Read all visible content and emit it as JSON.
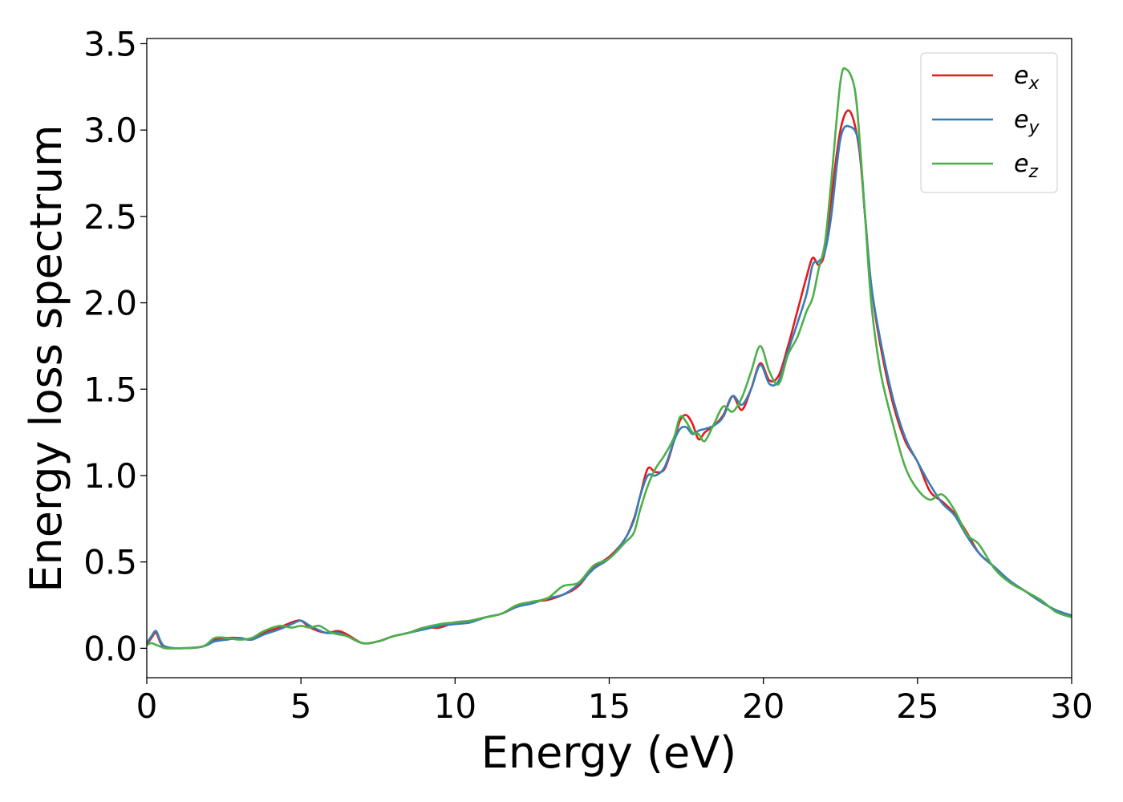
{
  "chart_data": {
    "type": "line",
    "title": "",
    "xlabel": "Energy (eV)",
    "ylabel": "Energy loss spectrum",
    "xlim": [
      0,
      30
    ],
    "ylim": [
      -0.17,
      3.53
    ],
    "xticks": [
      0,
      5,
      10,
      15,
      20,
      25,
      30
    ],
    "xtick_labels": [
      "0",
      "5",
      "10",
      "15",
      "20",
      "25",
      "30"
    ],
    "yticks": [
      0.0,
      0.5,
      1.0,
      1.5,
      2.0,
      2.5,
      3.0,
      3.5
    ],
    "ytick_labels": [
      "0.0",
      "0.5",
      "1.0",
      "1.5",
      "2.0",
      "2.5",
      "3.0",
      "3.5"
    ],
    "grid": false,
    "legend": "top-right",
    "series": [
      {
        "name": "e",
        "subscript": "x",
        "color": "#e41a1c",
        "points": [
          [
            0,
            0.02
          ],
          [
            0.15,
            0.06
          ],
          [
            0.3,
            0.09
          ],
          [
            0.45,
            0.03
          ],
          [
            0.6,
            0.01
          ],
          [
            1,
            0.0
          ],
          [
            1.8,
            0.01
          ],
          [
            2.2,
            0.05
          ],
          [
            2.6,
            0.06
          ],
          [
            3,
            0.06
          ],
          [
            3.4,
            0.05
          ],
          [
            3.8,
            0.09
          ],
          [
            4.3,
            0.12
          ],
          [
            4.7,
            0.15
          ],
          [
            5,
            0.16
          ],
          [
            5.3,
            0.12
          ],
          [
            5.8,
            0.09
          ],
          [
            6.2,
            0.1
          ],
          [
            6.5,
            0.08
          ],
          [
            7,
            0.03
          ],
          [
            7.5,
            0.04
          ],
          [
            8,
            0.07
          ],
          [
            8.5,
            0.09
          ],
          [
            9,
            0.12
          ],
          [
            9.5,
            0.12
          ],
          [
            10,
            0.15
          ],
          [
            10.5,
            0.16
          ],
          [
            11,
            0.18
          ],
          [
            11.5,
            0.2
          ],
          [
            12,
            0.24
          ],
          [
            12.5,
            0.27
          ],
          [
            13,
            0.28
          ],
          [
            13.5,
            0.31
          ],
          [
            14,
            0.36
          ],
          [
            14.5,
            0.47
          ],
          [
            15,
            0.53
          ],
          [
            15.5,
            0.63
          ],
          [
            15.8,
            0.75
          ],
          [
            16,
            0.88
          ],
          [
            16.25,
            1.04
          ],
          [
            16.5,
            1.02
          ],
          [
            16.8,
            1.04
          ],
          [
            17.1,
            1.2
          ],
          [
            17.3,
            1.32
          ],
          [
            17.5,
            1.35
          ],
          [
            17.7,
            1.3
          ],
          [
            17.9,
            1.21
          ],
          [
            18.1,
            1.25
          ],
          [
            18.4,
            1.29
          ],
          [
            18.7,
            1.35
          ],
          [
            19,
            1.46
          ],
          [
            19.3,
            1.38
          ],
          [
            19.6,
            1.5
          ],
          [
            19.9,
            1.65
          ],
          [
            20.2,
            1.55
          ],
          [
            20.5,
            1.58
          ],
          [
            20.8,
            1.75
          ],
          [
            21.1,
            1.95
          ],
          [
            21.4,
            2.15
          ],
          [
            21.6,
            2.26
          ],
          [
            21.8,
            2.22
          ],
          [
            22,
            2.3
          ],
          [
            22.2,
            2.6
          ],
          [
            22.5,
            3.0
          ],
          [
            22.8,
            3.11
          ],
          [
            23.1,
            2.9
          ],
          [
            23.3,
            2.5
          ],
          [
            23.5,
            2.1
          ],
          [
            23.8,
            1.75
          ],
          [
            24.2,
            1.42
          ],
          [
            24.6,
            1.2
          ],
          [
            25,
            1.08
          ],
          [
            25.4,
            0.91
          ],
          [
            25.8,
            0.85
          ],
          [
            26.2,
            0.78
          ],
          [
            26.6,
            0.67
          ],
          [
            27,
            0.55
          ],
          [
            27.5,
            0.47
          ],
          [
            28,
            0.39
          ],
          [
            28.5,
            0.33
          ],
          [
            29,
            0.27
          ],
          [
            29.5,
            0.22
          ],
          [
            30,
            0.19
          ]
        ]
      },
      {
        "name": "e",
        "subscript": "y",
        "color": "#377eb8",
        "points": [
          [
            0,
            0.03
          ],
          [
            0.15,
            0.07
          ],
          [
            0.3,
            0.1
          ],
          [
            0.45,
            0.04
          ],
          [
            0.6,
            0.01
          ],
          [
            1,
            0.0
          ],
          [
            1.8,
            0.01
          ],
          [
            2.2,
            0.04
          ],
          [
            2.6,
            0.05
          ],
          [
            3,
            0.06
          ],
          [
            3.4,
            0.05
          ],
          [
            3.8,
            0.08
          ],
          [
            4.3,
            0.11
          ],
          [
            4.7,
            0.14
          ],
          [
            5,
            0.16
          ],
          [
            5.3,
            0.13
          ],
          [
            5.8,
            0.09
          ],
          [
            6.2,
            0.09
          ],
          [
            6.5,
            0.07
          ],
          [
            7,
            0.03
          ],
          [
            7.5,
            0.04
          ],
          [
            8,
            0.07
          ],
          [
            8.5,
            0.09
          ],
          [
            9,
            0.11
          ],
          [
            9.5,
            0.13
          ],
          [
            10,
            0.14
          ],
          [
            10.5,
            0.15
          ],
          [
            11,
            0.18
          ],
          [
            11.5,
            0.2
          ],
          [
            12,
            0.24
          ],
          [
            12.5,
            0.26
          ],
          [
            13,
            0.29
          ],
          [
            13.5,
            0.31
          ],
          [
            14,
            0.37
          ],
          [
            14.5,
            0.46
          ],
          [
            15,
            0.52
          ],
          [
            15.5,
            0.63
          ],
          [
            15.8,
            0.74
          ],
          [
            16,
            0.88
          ],
          [
            16.25,
            1.0
          ],
          [
            16.5,
            1.0
          ],
          [
            16.8,
            1.05
          ],
          [
            17.1,
            1.2
          ],
          [
            17.3,
            1.27
          ],
          [
            17.5,
            1.28
          ],
          [
            17.7,
            1.24
          ],
          [
            17.9,
            1.26
          ],
          [
            18.1,
            1.27
          ],
          [
            18.4,
            1.29
          ],
          [
            18.7,
            1.34
          ],
          [
            19,
            1.46
          ],
          [
            19.3,
            1.41
          ],
          [
            19.6,
            1.5
          ],
          [
            19.9,
            1.64
          ],
          [
            20.2,
            1.53
          ],
          [
            20.5,
            1.55
          ],
          [
            20.8,
            1.72
          ],
          [
            21.1,
            1.88
          ],
          [
            21.4,
            2.05
          ],
          [
            21.6,
            2.22
          ],
          [
            21.8,
            2.24
          ],
          [
            22,
            2.3
          ],
          [
            22.2,
            2.5
          ],
          [
            22.5,
            2.95
          ],
          [
            22.8,
            3.02
          ],
          [
            23.1,
            2.92
          ],
          [
            23.3,
            2.5
          ],
          [
            23.5,
            2.1
          ],
          [
            23.8,
            1.78
          ],
          [
            24.2,
            1.45
          ],
          [
            24.6,
            1.22
          ],
          [
            25,
            1.08
          ],
          [
            25.4,
            0.95
          ],
          [
            25.8,
            0.84
          ],
          [
            26.2,
            0.77
          ],
          [
            26.6,
            0.65
          ],
          [
            27,
            0.55
          ],
          [
            27.5,
            0.47
          ],
          [
            28,
            0.39
          ],
          [
            28.5,
            0.33
          ],
          [
            29,
            0.27
          ],
          [
            29.5,
            0.22
          ],
          [
            30,
            0.19
          ]
        ]
      },
      {
        "name": "e",
        "subscript": "z",
        "color": "#4daf4a",
        "points": [
          [
            0,
            0.02
          ],
          [
            0.15,
            0.03
          ],
          [
            0.3,
            0.02
          ],
          [
            0.45,
            0.01
          ],
          [
            0.6,
            0.0
          ],
          [
            1,
            0.0
          ],
          [
            1.8,
            0.01
          ],
          [
            2.2,
            0.06
          ],
          [
            2.6,
            0.06
          ],
          [
            3,
            0.05
          ],
          [
            3.4,
            0.06
          ],
          [
            3.8,
            0.1
          ],
          [
            4.3,
            0.13
          ],
          [
            4.7,
            0.12
          ],
          [
            5,
            0.13
          ],
          [
            5.3,
            0.12
          ],
          [
            5.6,
            0.13
          ],
          [
            6,
            0.09
          ],
          [
            6.5,
            0.07
          ],
          [
            7,
            0.03
          ],
          [
            7.5,
            0.04
          ],
          [
            8,
            0.07
          ],
          [
            8.5,
            0.09
          ],
          [
            9,
            0.12
          ],
          [
            9.5,
            0.14
          ],
          [
            10,
            0.15
          ],
          [
            10.5,
            0.16
          ],
          [
            11,
            0.18
          ],
          [
            11.5,
            0.2
          ],
          [
            12,
            0.25
          ],
          [
            12.5,
            0.27
          ],
          [
            13,
            0.29
          ],
          [
            13.5,
            0.36
          ],
          [
            14,
            0.38
          ],
          [
            14.5,
            0.48
          ],
          [
            15,
            0.52
          ],
          [
            15.5,
            0.61
          ],
          [
            15.8,
            0.67
          ],
          [
            16,
            0.8
          ],
          [
            16.25,
            0.94
          ],
          [
            16.5,
            1.04
          ],
          [
            16.8,
            1.12
          ],
          [
            17.1,
            1.22
          ],
          [
            17.3,
            1.34
          ],
          [
            17.5,
            1.31
          ],
          [
            17.7,
            1.25
          ],
          [
            17.9,
            1.24
          ],
          [
            18.1,
            1.2
          ],
          [
            18.4,
            1.3
          ],
          [
            18.7,
            1.4
          ],
          [
            19,
            1.37
          ],
          [
            19.3,
            1.45
          ],
          [
            19.6,
            1.6
          ],
          [
            19.9,
            1.75
          ],
          [
            20.2,
            1.6
          ],
          [
            20.5,
            1.53
          ],
          [
            20.8,
            1.7
          ],
          [
            21.1,
            1.8
          ],
          [
            21.4,
            1.95
          ],
          [
            21.6,
            2.03
          ],
          [
            21.8,
            2.2
          ],
          [
            22,
            2.35
          ],
          [
            22.2,
            2.7
          ],
          [
            22.5,
            3.28
          ],
          [
            22.7,
            3.35
          ],
          [
            22.95,
            3.25
          ],
          [
            23.1,
            3.0
          ],
          [
            23.3,
            2.5
          ],
          [
            23.5,
            2.0
          ],
          [
            23.8,
            1.6
          ],
          [
            24.2,
            1.3
          ],
          [
            24.6,
            1.05
          ],
          [
            25,
            0.92
          ],
          [
            25.4,
            0.86
          ],
          [
            25.8,
            0.89
          ],
          [
            26.2,
            0.8
          ],
          [
            26.6,
            0.66
          ],
          [
            27,
            0.6
          ],
          [
            27.5,
            0.46
          ],
          [
            28,
            0.38
          ],
          [
            28.5,
            0.33
          ],
          [
            29,
            0.28
          ],
          [
            29.5,
            0.21
          ],
          [
            30,
            0.18
          ]
        ]
      }
    ]
  }
}
